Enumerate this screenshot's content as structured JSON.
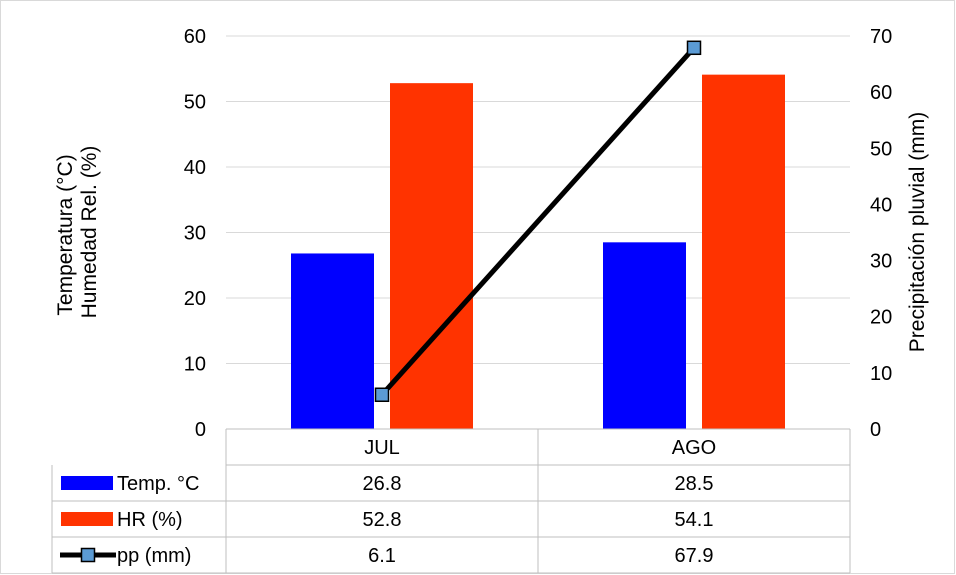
{
  "chart_data": {
    "type": "bar",
    "categories": [
      "JUL",
      "AGO"
    ],
    "series": [
      {
        "name": "Temp. °C",
        "kind": "bar",
        "axis": "left",
        "color": "#0000ff",
        "values": [
          26.8,
          28.5
        ],
        "labels": [
          "26.8",
          "28.5"
        ]
      },
      {
        "name": "HR (%)",
        "kind": "bar",
        "axis": "left",
        "color": "#ff3300",
        "values": [
          52.8,
          54.1
        ],
        "labels": [
          "52.8",
          "54.1"
        ]
      },
      {
        "name": "pp (mm)",
        "kind": "line",
        "axis": "right",
        "color": "#000000",
        "marker_color": "#5b9bd5",
        "marker": "square",
        "values": [
          6.1,
          67.9
        ],
        "labels": [
          "6.1",
          "67.9"
        ]
      }
    ],
    "ylabel_lines": [
      "Temperatura (°C)",
      "Humedad Rel. (%)"
    ],
    "y2label": "Precipitación pluvial (mm)",
    "ylim": [
      0,
      60
    ],
    "y2lim": [
      0,
      70
    ],
    "yticks": [
      "0",
      "10",
      "20",
      "30",
      "40",
      "50",
      "60"
    ],
    "y2ticks": [
      "0",
      "10",
      "20",
      "30",
      "40",
      "50",
      "60",
      "70"
    ],
    "grid": true,
    "data_table": true
  }
}
